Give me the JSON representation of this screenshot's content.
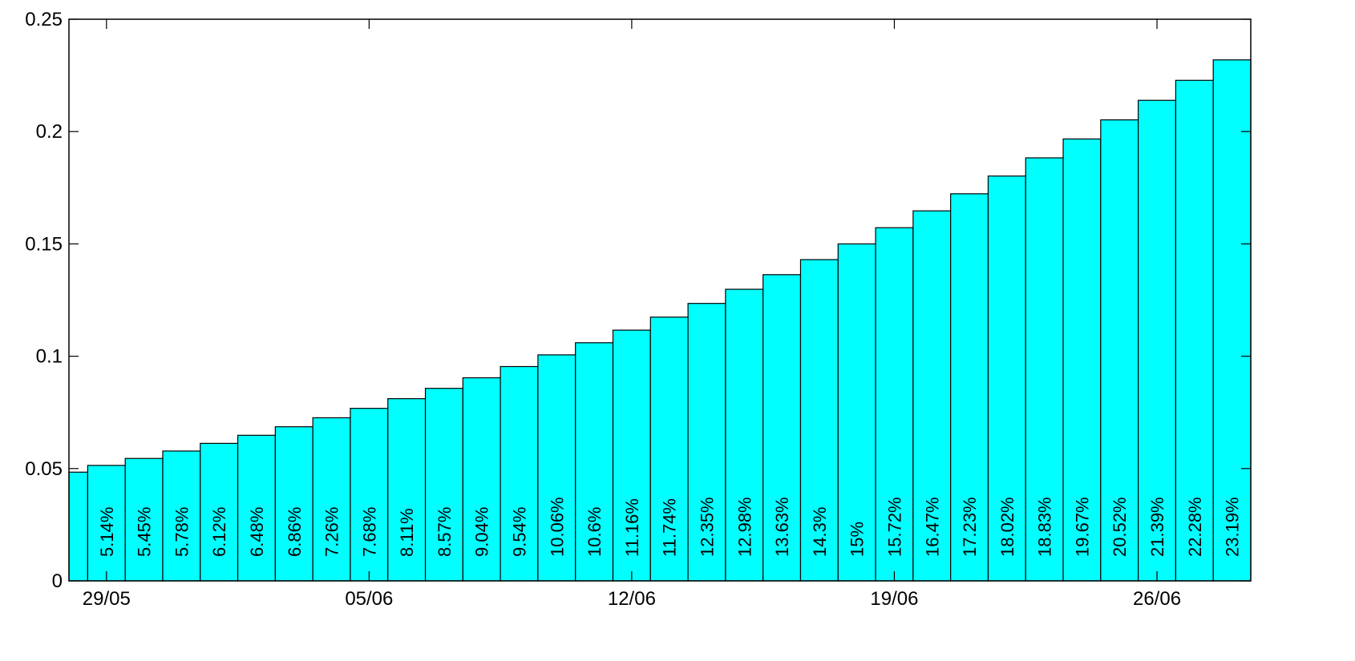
{
  "chart_data": {
    "type": "bar",
    "title": "",
    "xlabel": "",
    "ylabel": "",
    "ylim": [
      0,
      0.25
    ],
    "yticks": [
      0,
      0.05,
      0.1,
      0.15,
      0.2,
      0.25
    ],
    "ytick_labels": [
      "0",
      "0.05",
      "0.1",
      "0.15",
      "0.2",
      "0.25"
    ],
    "xtick_labels": [
      {
        "label": "29/05",
        "category": 1
      },
      {
        "label": "05/06",
        "category": 8
      },
      {
        "label": "12/06",
        "category": 15
      },
      {
        "label": "19/06",
        "category": 22
      },
      {
        "label": "26/06",
        "category": 29
      }
    ],
    "grid": false,
    "bar_color": "#00ffff",
    "edge_color": "#000000",
    "values": [
      0.0484,
      0.0514,
      0.0545,
      0.0578,
      0.0612,
      0.0648,
      0.0686,
      0.0726,
      0.0768,
      0.0811,
      0.0857,
      0.0904,
      0.0954,
      0.1006,
      0.106,
      0.1116,
      0.1174,
      0.1235,
      0.1298,
      0.1363,
      0.143,
      0.15,
      0.1572,
      0.1647,
      0.1723,
      0.1802,
      0.1883,
      0.1967,
      0.2052,
      0.2139,
      0.2228,
      0.2319
    ],
    "labels": [
      "",
      "5.14%",
      "5.45%",
      "5.78%",
      "6.12%",
      "6.48%",
      "6.86%",
      "7.26%",
      "7.68%",
      "8.11%",
      "8.57%",
      "9.04%",
      "9.54%",
      "10.06%",
      "10.6%",
      "11.16%",
      "11.74%",
      "12.35%",
      "12.98%",
      "13.63%",
      "14.3%",
      "15%",
      "15.72%",
      "16.47%",
      "17.23%",
      "18.02%",
      "18.83%",
      "19.67%",
      "20.52%",
      "21.39%",
      "22.28%",
      "23.19%"
    ]
  }
}
